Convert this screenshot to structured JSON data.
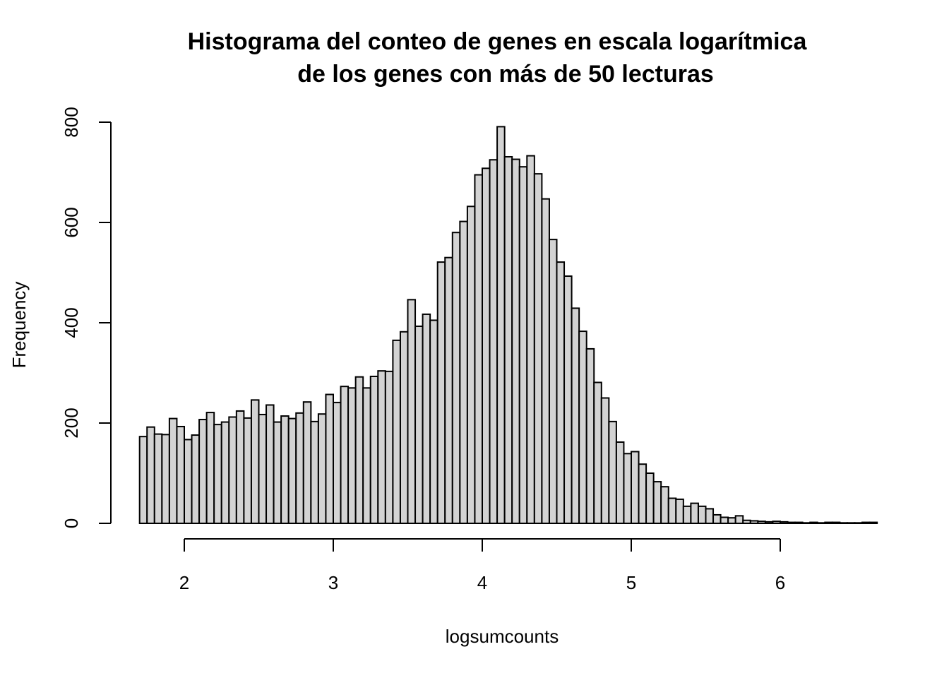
{
  "chart_data": {
    "type": "bar",
    "title": [
      "Histograma del conteo de genes en escala logarítmica",
      "de los genes con más de 50 lecturas"
    ],
    "xlabel": "logsumcounts",
    "ylabel": "Frequency",
    "xlim": [
      1.6,
      6.55
    ],
    "ylim": [
      0,
      800
    ],
    "x_ticks": [
      "2",
      "3",
      "4",
      "5",
      "6"
    ],
    "y_ticks": [
      "0",
      "200",
      "400",
      "600",
      "800"
    ],
    "bin_start": 1.7,
    "bin_width": 0.05,
    "values": [
      173,
      192,
      178,
      177,
      209,
      193,
      167,
      176,
      207,
      221,
      197,
      202,
      212,
      224,
      210,
      246,
      217,
      236,
      202,
      214,
      209,
      220,
      242,
      203,
      218,
      257,
      241,
      273,
      270,
      292,
      270,
      293,
      304,
      303,
      365,
      382,
      446,
      393,
      417,
      405,
      521,
      530,
      580,
      602,
      632,
      695,
      708,
      725,
      791,
      731,
      726,
      711,
      733,
      697,
      647,
      566,
      521,
      493,
      429,
      383,
      348,
      281,
      250,
      203,
      162,
      139,
      143,
      118,
      100,
      83,
      73,
      50,
      48,
      34,
      40,
      34,
      29,
      17,
      12,
      11,
      15,
      6,
      5,
      4,
      3,
      4,
      3,
      2,
      2,
      1,
      2,
      1,
      2,
      2,
      1,
      1,
      1,
      2,
      2
    ]
  }
}
